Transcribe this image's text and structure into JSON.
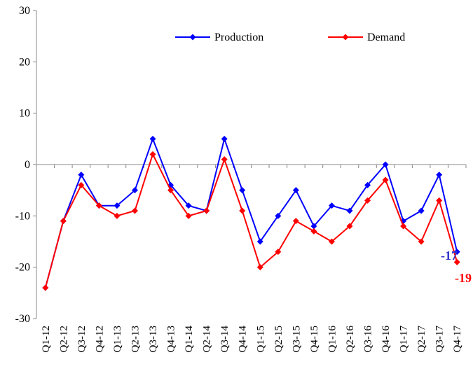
{
  "chart_data": {
    "type": "line",
    "categories": [
      "Q1-12",
      "Q2-12",
      "Q3-12",
      "Q4-12",
      "Q1-13",
      "Q2-13",
      "Q3-13",
      "Q4-13",
      "Q1-14",
      "Q2-14",
      "Q3-14",
      "Q4-14",
      "Q1-15",
      "Q2-15",
      "Q3-15",
      "Q4-15",
      "Q1-16",
      "Q2-16",
      "Q3-16",
      "Q4-16",
      "Q1-17",
      "Q2-17",
      "Q3-17",
      "Q4-17"
    ],
    "series": [
      {
        "name": "Production",
        "color": "#0000FF",
        "values": [
          -24,
          -11,
          -2,
          -8,
          -8,
          -5,
          5,
          -4,
          -8,
          -9,
          5,
          -5,
          -15,
          -10,
          -5,
          -12,
          -8,
          -9,
          -4,
          0,
          -11,
          -9,
          -2,
          -17
        ]
      },
      {
        "name": "Demand",
        "color": "#FF0000",
        "values": [
          -24,
          -11,
          -4,
          -8,
          -10,
          -9,
          2,
          -5,
          -10,
          -9,
          1,
          -9,
          -20,
          -17,
          -11,
          -13,
          -15,
          -12,
          -7,
          -3,
          -12,
          -15,
          -7,
          -19
        ]
      }
    ],
    "yticks": [
      30,
      20,
      10,
      0,
      -10,
      -20,
      -30
    ],
    "ylim": [
      -30,
      30
    ],
    "grid": false,
    "legend": "top-center",
    "end_labels": [
      {
        "text": "-17",
        "color": "#3333CC"
      },
      {
        "text": "-19",
        "color": "#FF0000"
      }
    ]
  }
}
